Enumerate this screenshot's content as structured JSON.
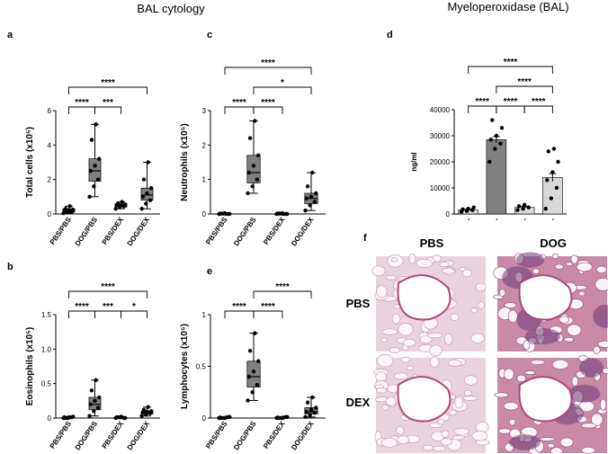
{
  "title_left": "BAL cytology",
  "title_right": "Myeloperoxidase (BAL)",
  "chart_data": [
    {
      "type": "box",
      "label": "a",
      "ylabel": "Total cells (x10⁵)",
      "color": "#808080",
      "categories": [
        "PBS/PBS",
        "DOG/PBS",
        "PBS/DEX",
        "DOG/DEX"
      ],
      "boxes": [
        {
          "min": 0.05,
          "q1": 0.1,
          "median": 0.2,
          "q3": 0.3,
          "max": 0.45,
          "points": [
            0.05,
            0.1,
            0.15,
            0.2,
            0.2,
            0.25,
            0.3,
            0.45
          ]
        },
        {
          "min": 1.0,
          "q1": 1.9,
          "median": 2.5,
          "q3": 3.2,
          "max": 5.2,
          "points": [
            1.0,
            1.6,
            2.0,
            2.5,
            2.8,
            3.2,
            4.3,
            5.2
          ]
        },
        {
          "min": 0.3,
          "q1": 0.4,
          "median": 0.5,
          "q3": 0.6,
          "max": 0.7,
          "points": [
            0.3,
            0.4,
            0.45,
            0.5,
            0.5,
            0.55,
            0.6,
            0.7
          ]
        },
        {
          "min": 0.3,
          "q1": 0.8,
          "median": 1.1,
          "q3": 1.5,
          "max": 3.0,
          "points": [
            0.3,
            0.6,
            0.8,
            1.0,
            1.2,
            1.5,
            2.0,
            3.0
          ]
        }
      ],
      "ylim": [
        0,
        6
      ],
      "yticks": [
        0,
        2,
        4,
        6
      ],
      "brackets": [
        {
          "groups": [
            0,
            1
          ],
          "label": "****"
        },
        {
          "groups": [
            1,
            2
          ],
          "label": "***"
        },
        {
          "groups": [
            0,
            3
          ],
          "label": "****"
        }
      ]
    },
    {
      "type": "box",
      "label": "b",
      "ylabel": "Eosinophils (x10⁵)",
      "color": "#808080",
      "categories": [
        "PBS/PBS",
        "DOG/PBS",
        "PBS/DEX",
        "DOG/DEX"
      ],
      "boxes": [
        {
          "min": 0,
          "q1": 0,
          "median": 0.01,
          "q3": 0.01,
          "max": 0.02,
          "points": [
            0,
            0,
            0.01,
            0.01,
            0.01,
            0.02,
            0,
            0.01
          ]
        },
        {
          "min": 0.03,
          "q1": 0.12,
          "median": 0.2,
          "q3": 0.3,
          "max": 0.55,
          "points": [
            0.03,
            0.1,
            0.15,
            0.2,
            0.25,
            0.3,
            0.4,
            0.55
          ]
        },
        {
          "min": 0,
          "q1": 0,
          "median": 0.01,
          "q3": 0.01,
          "max": 0.02,
          "points": [
            0,
            0.01,
            0,
            0.01,
            0.02,
            0,
            0.01,
            0.01
          ]
        },
        {
          "min": 0.03,
          "q1": 0.06,
          "median": 0.08,
          "q3": 0.1,
          "max": 0.16,
          "points": [
            0.03,
            0.05,
            0.07,
            0.08,
            0.09,
            0.1,
            0.12,
            0.16
          ]
        }
      ],
      "ylim": [
        0,
        1.5
      ],
      "yticks": [
        0,
        0.5,
        {
          "value": 1,
          "label": "1.0"
        },
        1.5
      ],
      "brackets": [
        {
          "groups": [
            0,
            1
          ],
          "label": "****"
        },
        {
          "groups": [
            1,
            2
          ],
          "label": "***"
        },
        {
          "groups": [
            2,
            3
          ],
          "label": "*"
        },
        {
          "groups": [
            0,
            3
          ],
          "label": "****"
        }
      ]
    },
    {
      "type": "box",
      "label": "c",
      "ylabel": "Neutrophils (x10⁵)",
      "color": "#808080",
      "categories": [
        "PBS/PBS",
        "DOG/PBS",
        "PBS/DEX",
        "DOG/DEX"
      ],
      "boxes": [
        {
          "min": 0,
          "q1": 0,
          "median": 0.01,
          "q3": 0.01,
          "max": 0.02,
          "points": [
            0,
            0.01,
            0,
            0.01,
            0.02,
            0,
            0.01,
            0
          ]
        },
        {
          "min": 0.6,
          "q1": 0.9,
          "median": 1.2,
          "q3": 1.7,
          "max": 2.7,
          "points": [
            0.6,
            0.8,
            1.0,
            1.2,
            1.4,
            1.7,
            2.2,
            2.7
          ]
        },
        {
          "min": 0,
          "q1": 0,
          "median": 0.01,
          "q3": 0.01,
          "max": 0.02,
          "points": [
            0,
            0.01,
            0,
            0.01,
            0.02,
            0,
            0.01,
            0
          ]
        },
        {
          "min": 0.1,
          "q1": 0.3,
          "median": 0.45,
          "q3": 0.6,
          "max": 1.2,
          "points": [
            0.1,
            0.25,
            0.35,
            0.45,
            0.5,
            0.6,
            0.8,
            1.2
          ]
        }
      ],
      "ylim": [
        0,
        3
      ],
      "yticks": [
        0,
        1,
        2,
        3
      ],
      "brackets": [
        {
          "groups": [
            0,
            1
          ],
          "label": "****"
        },
        {
          "groups": [
            1,
            2
          ],
          "label": "****"
        },
        {
          "groups": [
            1,
            3
          ],
          "label": "*"
        },
        {
          "groups": [
            0,
            3
          ],
          "label": "****"
        }
      ]
    },
    {
      "type": "box",
      "label": "e",
      "ylabel": "Lymphocytes (x10⁵)",
      "color": "#808080",
      "categories": [
        "PBS/PBS",
        "DOG/PBS",
        "PBS/DEX",
        "DOG/DEX"
      ],
      "boxes": [
        {
          "min": 0,
          "q1": 0,
          "median": 0.005,
          "q3": 0.01,
          "max": 0.01,
          "points": [
            0,
            0,
            0.01,
            0.005,
            0,
            0.01,
            0,
            0.005
          ]
        },
        {
          "min": 0.17,
          "q1": 0.3,
          "median": 0.4,
          "q3": 0.55,
          "max": 0.82,
          "points": [
            0.17,
            0.25,
            0.32,
            0.4,
            0.45,
            0.55,
            0.65,
            0.82
          ]
        },
        {
          "min": 0,
          "q1": 0,
          "median": 0.005,
          "q3": 0.01,
          "max": 0.01,
          "points": [
            0,
            0,
            0.01,
            0.005,
            0,
            0.01,
            0,
            0.005
          ]
        },
        {
          "min": 0.01,
          "q1": 0.04,
          "median": 0.06,
          "q3": 0.1,
          "max": 0.2,
          "points": [
            0.01,
            0.03,
            0.05,
            0.06,
            0.08,
            0.1,
            0.15,
            0.2
          ]
        }
      ],
      "ylim": [
        0,
        1
      ],
      "yticks": [
        0,
        0.5,
        1
      ],
      "brackets": [
        {
          "groups": [
            0,
            1
          ],
          "label": "****"
        },
        {
          "groups": [
            1,
            2
          ],
          "label": "****"
        },
        {
          "groups": [
            1,
            3
          ],
          "label": "****"
        }
      ]
    },
    {
      "type": "bar",
      "label": "d",
      "ylabel": "ng/ml",
      "categories": [
        "-",
        "-",
        "-",
        "-"
      ],
      "colors": [
        "#d9d9d9",
        "#808080",
        "#d9d9d9",
        "#d9d9d9"
      ],
      "values": [
        1500,
        28500,
        2500,
        14000
      ],
      "errors": [
        300,
        1200,
        400,
        1500
      ],
      "points": [
        [
          800,
          1200,
          1500,
          1800,
          2000,
          2500
        ],
        [
          20000,
          25000,
          27000,
          28500,
          30000,
          33000,
          36000
        ],
        [
          1500,
          2000,
          2500,
          3000,
          3500
        ],
        [
          2000,
          6000,
          10000,
          13000,
          16000,
          20000,
          24000,
          25000
        ]
      ],
      "ylim": [
        0,
        40000
      ],
      "yticks": [
        0,
        10000,
        20000,
        30000,
        40000
      ],
      "brackets": [
        {
          "groups": [
            0,
            1
          ],
          "label": "****"
        },
        {
          "groups": [
            1,
            2
          ],
          "label": "****"
        },
        {
          "groups": [
            2,
            3
          ],
          "label": "****"
        },
        {
          "groups": [
            1,
            3
          ],
          "label": "****"
        },
        {
          "groups": [
            0,
            3
          ],
          "label": "****"
        }
      ]
    }
  ],
  "histology": {
    "label": "f",
    "columns": [
      "PBS",
      "DOG"
    ],
    "rows": [
      "PBS",
      "DEX"
    ]
  }
}
